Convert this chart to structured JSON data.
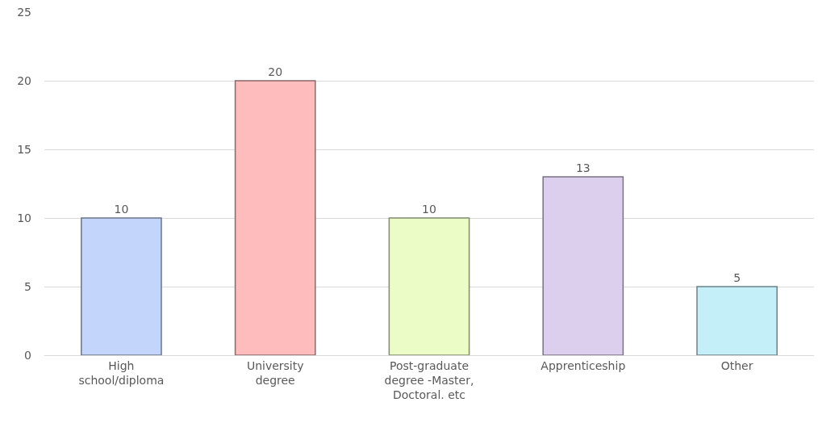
{
  "chart_data": {
    "type": "bar",
    "categories": [
      "High school/diploma",
      "University degree",
      "Post-graduate degree -Master, Doctoral. etc",
      "Apprenticeship",
      "Other"
    ],
    "values": [
      10,
      20,
      10,
      13,
      5
    ],
    "colors": [
      "#c3d5fa",
      "#ffbcbc",
      "#ecfcc6",
      "#dccfee",
      "#c4eff9"
    ],
    "ylim": [
      0,
      25
    ],
    "yticks": [
      0,
      5,
      10,
      15,
      20,
      25
    ],
    "grid": "y",
    "data_labels": true
  }
}
